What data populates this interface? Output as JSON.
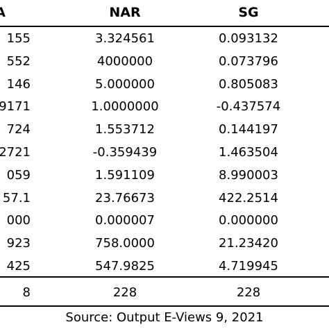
{
  "table": {
    "headers": [
      "A",
      "NAR",
      "SG"
    ],
    "rows": [
      [
        "155",
        "3.324561",
        "0.093132"
      ],
      [
        "552",
        "4000000",
        "0.073796"
      ],
      [
        "146",
        "5.000000",
        "0.805083"
      ],
      [
        "9171",
        "1.0000000",
        "-0.437574"
      ],
      [
        "724",
        "1.553712",
        "0.144197"
      ],
      [
        "2721",
        "-0.359439",
        "1.463504"
      ],
      [
        "059",
        "1.591109",
        "8.990003"
      ],
      [
        "57.1",
        "23.76673",
        "422.2514"
      ],
      [
        "000",
        "0.000007",
        "0.000000"
      ],
      [
        "923",
        "758.0000",
        "21.23420"
      ],
      [
        "425",
        "547.9825",
        "4.719945"
      ]
    ],
    "count_row": [
      "8",
      "228",
      "228"
    ]
  },
  "source_note": "Source: Output E-Views 9, 2021"
}
